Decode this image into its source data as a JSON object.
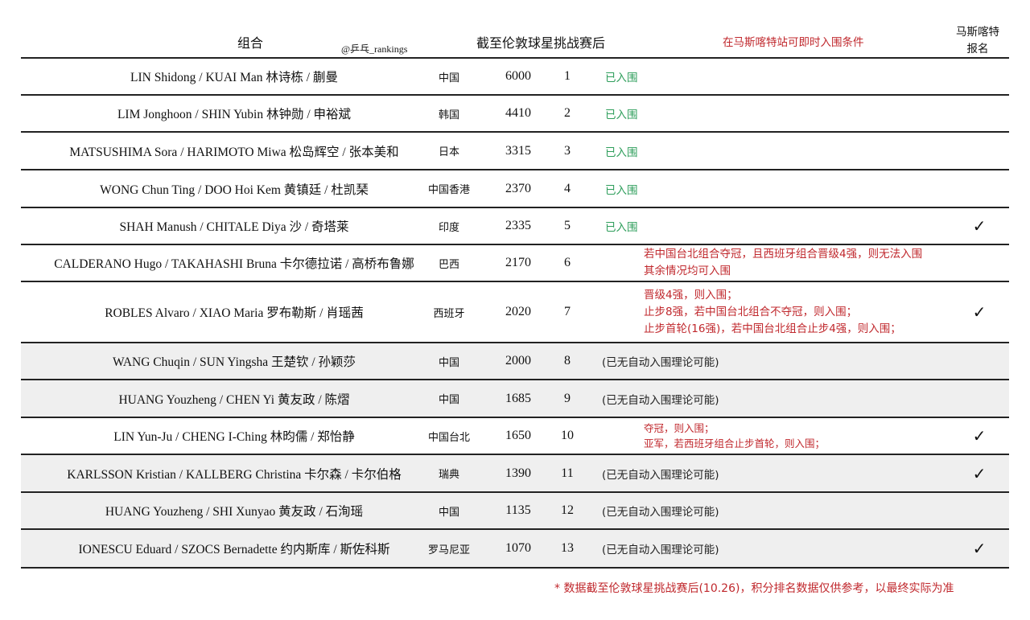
{
  "header": {
    "pair": "组合",
    "watermark": "@乒乓_rankings",
    "standing": "截至伦敦球星挑战赛后",
    "conditions": "在马斯喀特站可即时入围条件",
    "entry_line1": "马斯喀特",
    "entry_line2": "报名"
  },
  "colors": {
    "qualified": "#2e9e5b",
    "condition": "#c0282d",
    "row_alt": "#efefef"
  },
  "rows": [
    {
      "name": "LIN Shidong / KUAI Man 林诗栋 / 蒯曼",
      "country": "中国",
      "points": "6000",
      "rank": "1",
      "status": "qualified",
      "condition": [
        "已入围"
      ],
      "entered": "",
      "gray": false
    },
    {
      "name": "LIM Jonghoon / SHIN Yubin 林钟勋 / 申裕斌",
      "country": "韩国",
      "points": "4410",
      "rank": "2",
      "status": "qualified",
      "condition": [
        "已入围"
      ],
      "entered": "",
      "gray": false
    },
    {
      "name": "MATSUSHIMA Sora / HARIMOTO Miwa 松岛辉空 / 张本美和",
      "country": "日本",
      "points": "3315",
      "rank": "3",
      "status": "qualified",
      "condition": [
        "已入围"
      ],
      "entered": "",
      "gray": false
    },
    {
      "name": "WONG Chun Ting / DOO Hoi Kem 黄镇廷 / 杜凯琹",
      "country": "中国香港",
      "points": "2370",
      "rank": "4",
      "status": "qualified",
      "condition": [
        "已入围"
      ],
      "entered": "",
      "gray": false
    },
    {
      "name": "SHAH Manush / CHITALE Diya 沙 / 奇塔莱",
      "country": "印度",
      "points": "2335",
      "rank": "5",
      "status": "qualified",
      "condition": [
        "已入围"
      ],
      "entered": "✓",
      "gray": false
    },
    {
      "name": "CALDERANO Hugo / TAKAHASHI Bruna 卡尔德拉诺 / 高桥布鲁娜",
      "country": "巴西",
      "points": "2170",
      "rank": "6",
      "status": "red",
      "condition": [
        "若中国台北组合夺冠，且西班牙组合晋级4强，则无法入围",
        "其余情况均可入围"
      ],
      "entered": "",
      "gray": false
    },
    {
      "name": "ROBLES Alvaro / XIAO Maria 罗布勒斯 / 肖瑶茜",
      "country": "西班牙",
      "points": "2020",
      "rank": "7",
      "status": "red",
      "condition": [
        "晋级4强，则入围；",
        "止步8强，若中国台北组合不夺冠，则入围；",
        "止步首轮(16强)，若中国台北组合止步4强，则入围；"
      ],
      "entered": "✓",
      "gray": false
    },
    {
      "name": "WANG Chuqin / SUN Yingsha 王楚钦 / 孙颖莎",
      "country": "中国",
      "points": "2000",
      "rank": "8",
      "status": "none",
      "condition": [
        "(已无自动入围理论可能)"
      ],
      "entered": "",
      "gray": true
    },
    {
      "name": "HUANG Youzheng / CHEN Yi 黄友政 / 陈熠",
      "country": "中国",
      "points": "1685",
      "rank": "9",
      "status": "none",
      "condition": [
        "(已无自动入围理论可能)"
      ],
      "entered": "",
      "gray": true
    },
    {
      "name": "LIN Yun-Ju / CHENG I-Ching 林昀儒 / 郑怡静",
      "country": "中国台北",
      "points": "1650",
      "rank": "10",
      "status": "red small",
      "condition": [
        "夺冠，则入围；",
        "亚军，若西班牙组合止步首轮，则入围；"
      ],
      "entered": "✓",
      "gray": false
    },
    {
      "name": "KARLSSON Kristian / KALLBERG Christina 卡尔森 / 卡尔伯格",
      "country": "瑞典",
      "points": "1390",
      "rank": "11",
      "status": "none",
      "condition": [
        "(已无自动入围理论可能)"
      ],
      "entered": "✓",
      "gray": true
    },
    {
      "name": "HUANG Youzheng / SHI Xunyao 黄友政 / 石洵瑶",
      "country": "中国",
      "points": "1135",
      "rank": "12",
      "status": "none",
      "condition": [
        "(已无自动入围理论可能)"
      ],
      "entered": "",
      "gray": true
    },
    {
      "name": "IONESCU Eduard / SZOCS Bernadette 约内斯库 / 斯佐科斯",
      "country": "罗马尼亚",
      "points": "1070",
      "rank": "13",
      "status": "none",
      "condition": [
        "(已无自动入围理论可能)"
      ],
      "entered": "✓",
      "gray": true
    }
  ],
  "footnote": "* 数据截至伦敦球星挑战赛后(10.26)，积分排名数据仅供参考，以最终实际为准"
}
